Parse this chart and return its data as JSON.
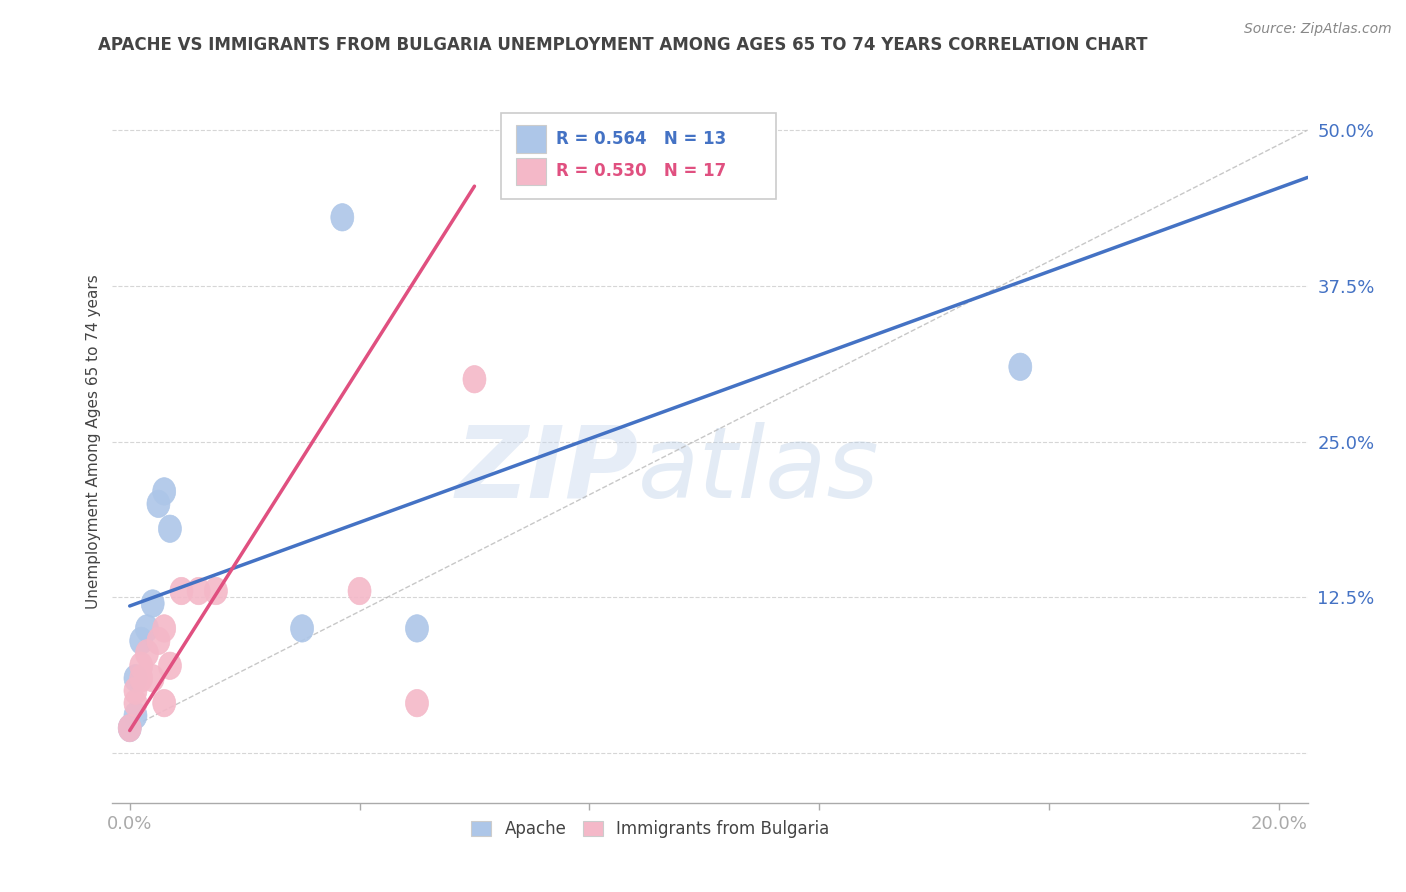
{
  "title": "APACHE VS IMMIGRANTS FROM BULGARIA UNEMPLOYMENT AMONG AGES 65 TO 74 YEARS CORRELATION CHART",
  "source": "Source: ZipAtlas.com",
  "ylabel": "Unemployment Among Ages 65 to 74 years",
  "xlim": [
    -0.003,
    0.205
  ],
  "ylim": [
    -0.04,
    0.54
  ],
  "xticks": [
    0.0,
    0.04,
    0.08,
    0.12,
    0.16,
    0.2
  ],
  "xticklabels": [
    "0.0%",
    "",
    "",
    "",
    "",
    "20.0%"
  ],
  "yticks": [
    0.0,
    0.125,
    0.25,
    0.375,
    0.5
  ],
  "yticklabels": [
    "",
    "12.5%",
    "25.0%",
    "37.5%",
    "50.0%"
  ],
  "apache_R": 0.564,
  "apache_N": 13,
  "bulgaria_R": 0.53,
  "bulgaria_N": 17,
  "apache_color": "#adc6e8",
  "apache_line_color": "#4472c4",
  "bulgaria_color": "#f4b8c8",
  "bulgaria_line_color": "#e05080",
  "apache_scatter_x": [
    0.0,
    0.001,
    0.001,
    0.002,
    0.003,
    0.004,
    0.005,
    0.006,
    0.007,
    0.03,
    0.037,
    0.05,
    0.155
  ],
  "apache_scatter_y": [
    0.02,
    0.03,
    0.06,
    0.09,
    0.1,
    0.12,
    0.2,
    0.21,
    0.18,
    0.1,
    0.43,
    0.1,
    0.31
  ],
  "bulgaria_scatter_x": [
    0.0,
    0.001,
    0.001,
    0.002,
    0.002,
    0.003,
    0.004,
    0.005,
    0.006,
    0.006,
    0.007,
    0.009,
    0.012,
    0.015,
    0.04,
    0.05,
    0.06
  ],
  "bulgaria_scatter_y": [
    0.02,
    0.04,
    0.05,
    0.06,
    0.07,
    0.08,
    0.06,
    0.09,
    0.1,
    0.04,
    0.07,
    0.13,
    0.13,
    0.13,
    0.13,
    0.04,
    0.3
  ],
  "watermark_zip": "ZIP",
  "watermark_atlas": "atlas",
  "background_color": "#ffffff",
  "grid_color": "#cccccc",
  "title_color": "#444444",
  "tick_color": "#4472c4"
}
